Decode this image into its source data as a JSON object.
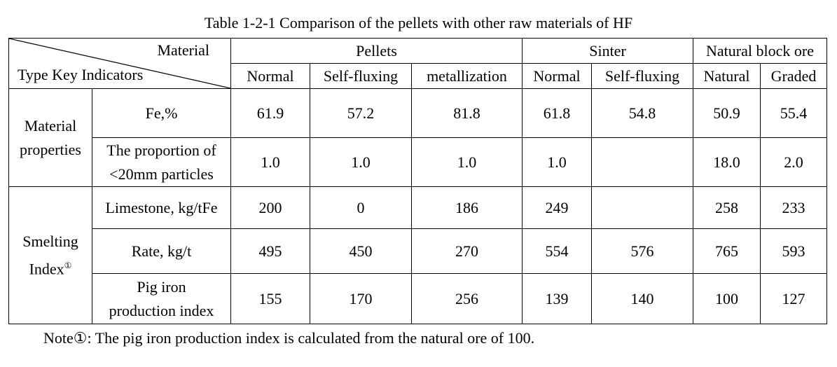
{
  "title": "Table 1-2-1 Comparison of the pellets with other raw materials of HF",
  "header": {
    "material": "Material",
    "type_key": "Type Key Indicators",
    "groups": [
      "Pellets",
      "Sinter",
      "Natural block ore"
    ],
    "subs": [
      "Normal",
      "Self-fluxing",
      "metallization",
      "Normal",
      "Self-fluxing",
      "Natural",
      "Graded"
    ]
  },
  "sections": {
    "material_properties": "Material properties",
    "smelting_index": "Smelting Index",
    "smelting_mark": "①"
  },
  "rows": [
    {
      "label": "Fe,%",
      "values": [
        "61.9",
        "57.2",
        "81.8",
        "61.8",
        "54.8",
        "50.9",
        "55.4"
      ]
    },
    {
      "label_lines": [
        "The proportion of",
        "<20mm particles"
      ],
      "values": [
        "1.0",
        "1.0",
        "1.0",
        "1.0",
        "",
        "18.0",
        "2.0"
      ]
    },
    {
      "label": "Limestone, kg/tFe",
      "values": [
        "200",
        "0",
        "186",
        "249",
        "",
        "258",
        "233"
      ]
    },
    {
      "label": "Rate, kg/t",
      "values": [
        "495",
        "450",
        "270",
        "554",
        "576",
        "765",
        "593"
      ]
    },
    {
      "label_lines": [
        "Pig iron",
        "production index"
      ],
      "values": [
        "155",
        "170",
        "256",
        "139",
        "140",
        "100",
        "127"
      ]
    }
  ],
  "note": "Note①: The pig iron production index is calculated from the natural ore of 100."
}
